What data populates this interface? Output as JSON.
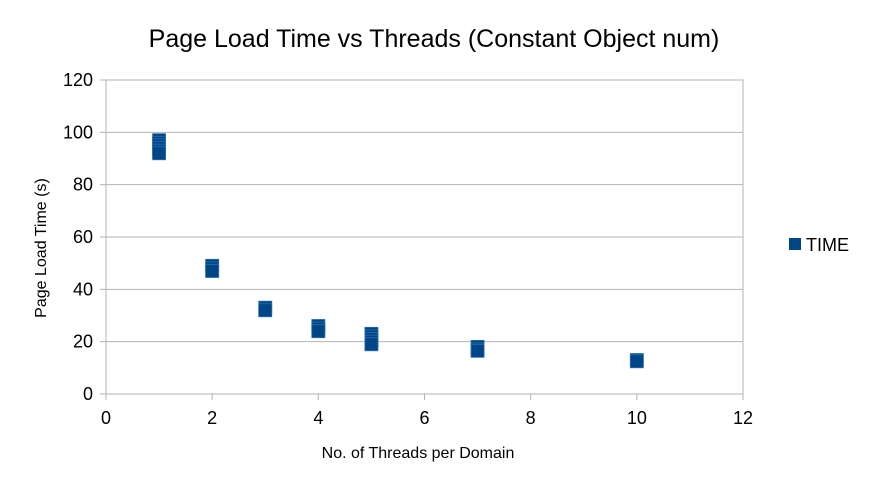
{
  "chart_data": {
    "type": "scatter",
    "title": "Page Load Time vs Threads (Constant Object num)",
    "xlabel": "No. of Threads per Domain",
    "ylabel": "Page Load Time (s)",
    "xlim": [
      0,
      12
    ],
    "ylim": [
      0,
      120
    ],
    "xticks": [
      "0",
      "2",
      "4",
      "6",
      "8",
      "10",
      "12"
    ],
    "yticks": [
      "0",
      "20",
      "40",
      "60",
      "80",
      "100",
      "120"
    ],
    "grid": "horizontal",
    "legend_position": "right",
    "series": [
      {
        "name": "TIME",
        "color": "#004586",
        "marker": "square",
        "points": [
          {
            "x": 1,
            "y": 97
          },
          {
            "x": 1,
            "y": 96
          },
          {
            "x": 1,
            "y": 95
          },
          {
            "x": 1,
            "y": 94
          },
          {
            "x": 1,
            "y": 93
          },
          {
            "x": 1,
            "y": 92
          },
          {
            "x": 2,
            "y": 49
          },
          {
            "x": 2,
            "y": 48
          },
          {
            "x": 2,
            "y": 47
          },
          {
            "x": 3,
            "y": 33
          },
          {
            "x": 3,
            "y": 32
          },
          {
            "x": 4,
            "y": 26
          },
          {
            "x": 4,
            "y": 25
          },
          {
            "x": 4,
            "y": 24
          },
          {
            "x": 5,
            "y": 23
          },
          {
            "x": 5,
            "y": 22
          },
          {
            "x": 5,
            "y": 21
          },
          {
            "x": 5,
            "y": 20
          },
          {
            "x": 5,
            "y": 19
          },
          {
            "x": 7,
            "y": 18
          },
          {
            "x": 7,
            "y": 17
          },
          {
            "x": 7,
            "y": 16.5
          },
          {
            "x": 10,
            "y": 13
          },
          {
            "x": 10,
            "y": 12.5
          }
        ]
      }
    ]
  }
}
